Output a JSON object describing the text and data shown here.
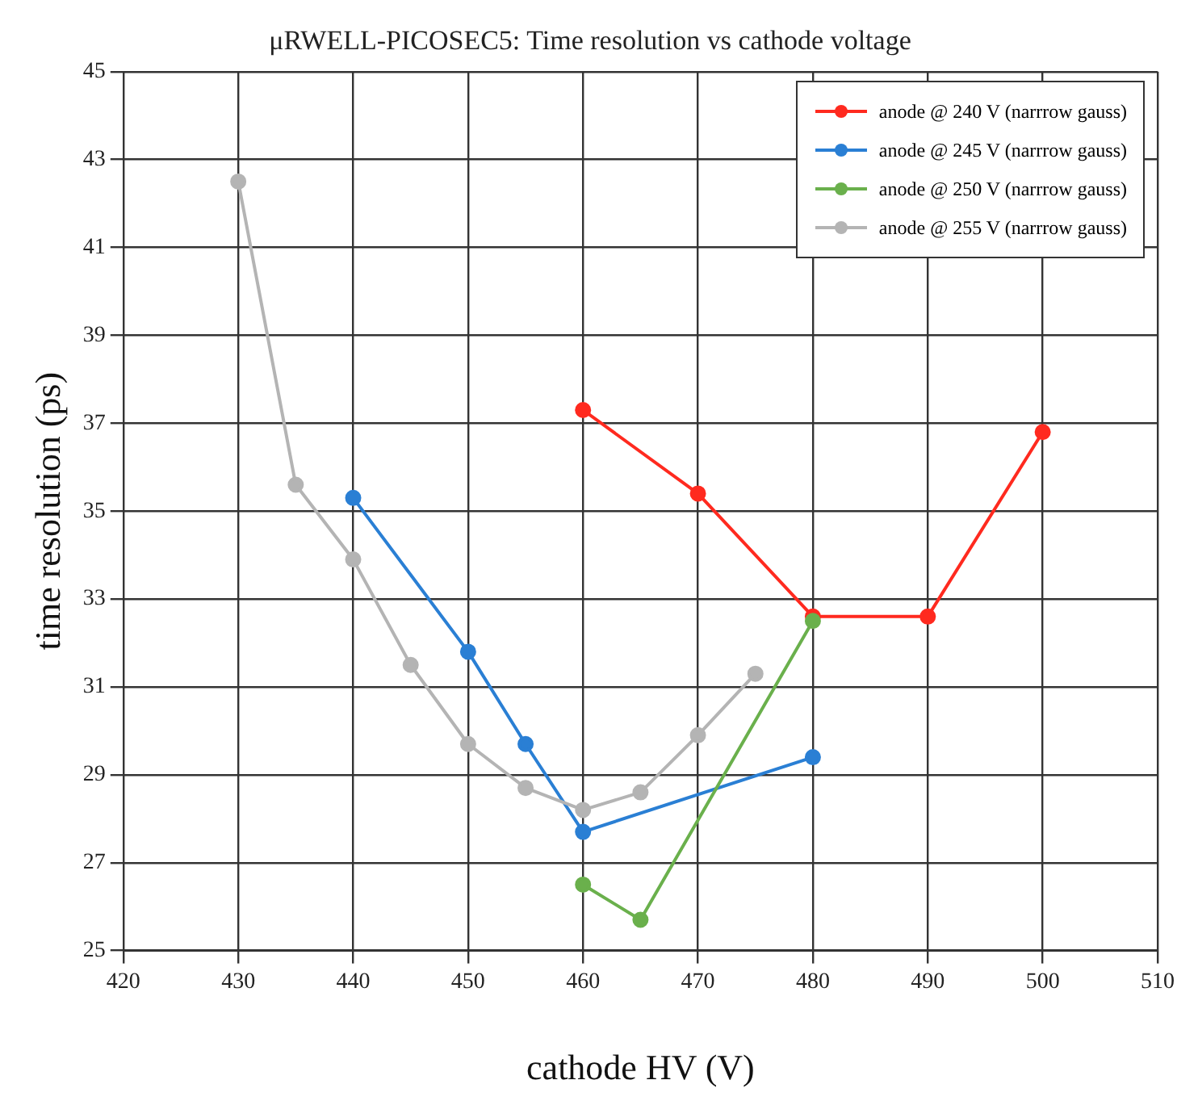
{
  "chart_data": {
    "type": "line",
    "title": "μRWELL-PICOSEC5: Time resolution vs cathode voltage",
    "xlabel": "cathode HV (V)",
    "ylabel": "time resolution (ps)",
    "xlim": [
      420,
      510
    ],
    "xticks": [
      420,
      430,
      440,
      450,
      460,
      470,
      480,
      490,
      500,
      510
    ],
    "ylim": [
      25,
      45
    ],
    "yticks": [
      25,
      27,
      29,
      31,
      33,
      35,
      37,
      39,
      41,
      43,
      45
    ],
    "grid": true,
    "legend": "top right",
    "marker": "circle",
    "line_style": "solid",
    "series": [
      {
        "name": "anode @ 240 V (narrrow gauss)",
        "color": "#ff2a1f",
        "x": [
          460,
          470,
          480,
          490,
          500
        ],
        "values": [
          37.3,
          35.4,
          32.6,
          32.6,
          36.8
        ]
      },
      {
        "name": "anode @ 245 V (narrrow gauss)",
        "color": "#2a7fd4",
        "x": [
          440,
          450,
          455,
          460,
          480
        ],
        "values": [
          35.3,
          31.8,
          29.7,
          27.7,
          29.4
        ]
      },
      {
        "name": "anode @ 250 V (narrrow gauss)",
        "color": "#6ab04c",
        "x": [
          460,
          465,
          480
        ],
        "values": [
          26.5,
          25.7,
          32.5
        ]
      },
      {
        "name": "anode @ 255 V (narrrow gauss)",
        "color": "#b4b4b4",
        "x": [
          430,
          435,
          440,
          445,
          450,
          455,
          460,
          465,
          470,
          475
        ],
        "values": [
          42.5,
          35.6,
          33.9,
          31.5,
          29.7,
          28.7,
          28.2,
          28.6,
          29.9,
          31.3
        ]
      }
    ]
  }
}
